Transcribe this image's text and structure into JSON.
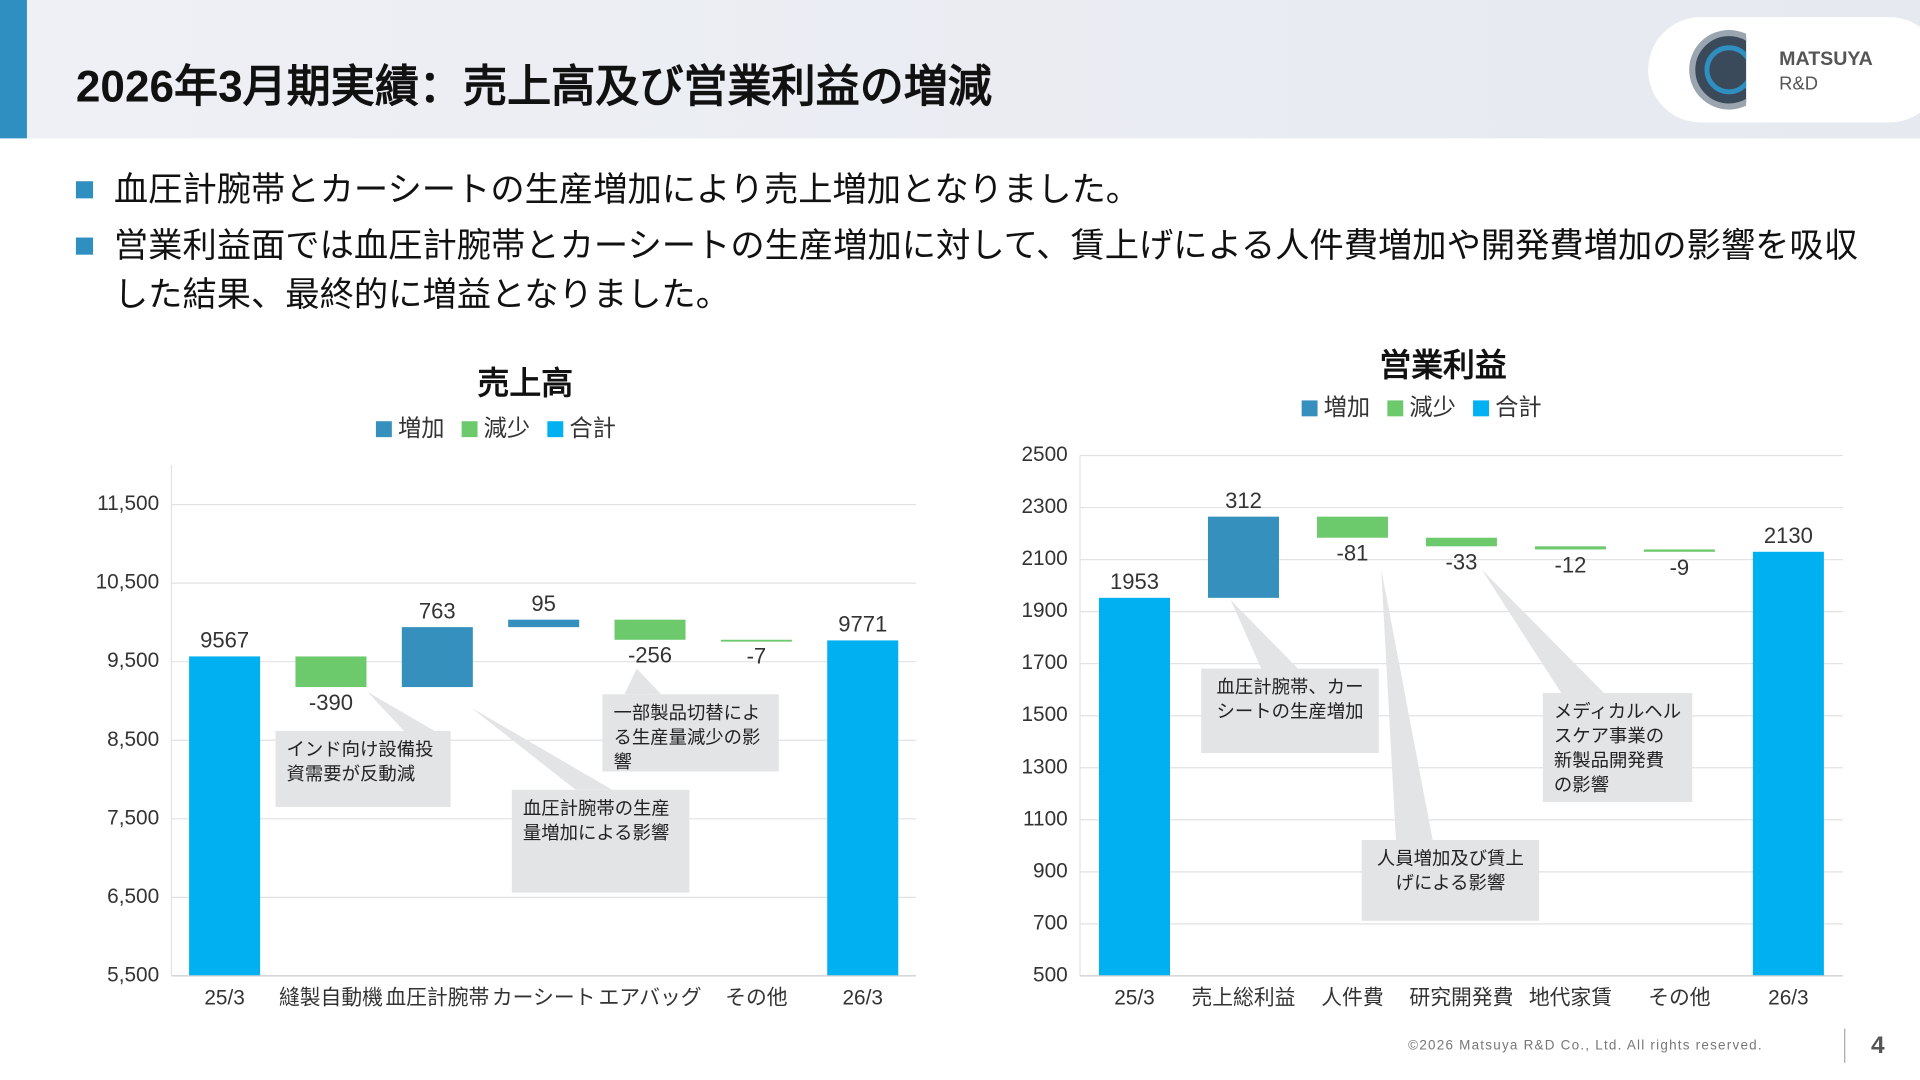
{
  "header": {
    "title": "2026年3月期実績：売上高及び営業利益の増減",
    "logo_name": "MATSUYA",
    "logo_sub": "R&D"
  },
  "bullets": [
    "血圧計腕帯とカーシートの生産増加により売上増加となりました。",
    "営業利益面では血圧計腕帯とカーシートの生産増加に対して、賃上げによる人件費増加や開発費増加の影響を吸収した結果、最終的に増益となりました。"
  ],
  "chart_data": [
    {
      "type": "waterfall",
      "title": "売上高",
      "legend": [
        {
          "name": "増加",
          "color": "#3590bd"
        },
        {
          "name": "減少",
          "color": "#6cc96c"
        },
        {
          "name": "合計",
          "color": "#00b0f0"
        }
      ],
      "categories": [
        "25/3",
        "縫製自動機",
        "血圧計腕帯",
        "カーシート",
        "エアバッグ",
        "その他",
        "26/3"
      ],
      "values": [
        9567,
        -390,
        763,
        95,
        -256,
        -7,
        9771
      ],
      "ylim": [
        5500,
        12000
      ],
      "yticks": [
        {
          "value": 5500,
          "label": "5,500"
        },
        {
          "value": 6500,
          "label": "6,500"
        },
        {
          "value": 7500,
          "label": "7,500"
        },
        {
          "value": 8500,
          "label": "8,500"
        },
        {
          "value": 9500,
          "label": "9,500"
        },
        {
          "value": 10500,
          "label": "10,500"
        },
        {
          "value": 11500,
          "label": "11,500"
        }
      ],
      "grid": true,
      "annotations": [
        "インド向け設備投資需要が反動減",
        "血圧計腕帯の生産量増加による影響",
        "一部製品切替による生産量減少の影響"
      ]
    },
    {
      "type": "waterfall",
      "title": "営業利益",
      "legend": [
        {
          "name": "増加",
          "color": "#3590bd"
        },
        {
          "name": "減少",
          "color": "#6cc96c"
        },
        {
          "name": "合計",
          "color": "#00b0f0"
        }
      ],
      "categories": [
        "25/3",
        "売上総利益",
        "人件費",
        "研究開発費",
        "地代家賃",
        "その他",
        "26/3"
      ],
      "values": [
        1953,
        312,
        -81,
        -33,
        -12,
        -9,
        2130
      ],
      "ylim": [
        500,
        2500
      ],
      "yticks": [
        500,
        700,
        900,
        1100,
        1300,
        1500,
        1700,
        1900,
        2100,
        2300,
        2500
      ],
      "grid": true,
      "annotations": [
        "血圧計腕帯、カーシートの生産増加",
        "人員増加及び賃上げによる影響",
        "メディカルヘルスケア事業の新製品開発費の影響"
      ]
    }
  ],
  "footer": {
    "copyright": "©2026 Matsuya R&D Co., Ltd. All rights reserved.",
    "page": "4"
  }
}
